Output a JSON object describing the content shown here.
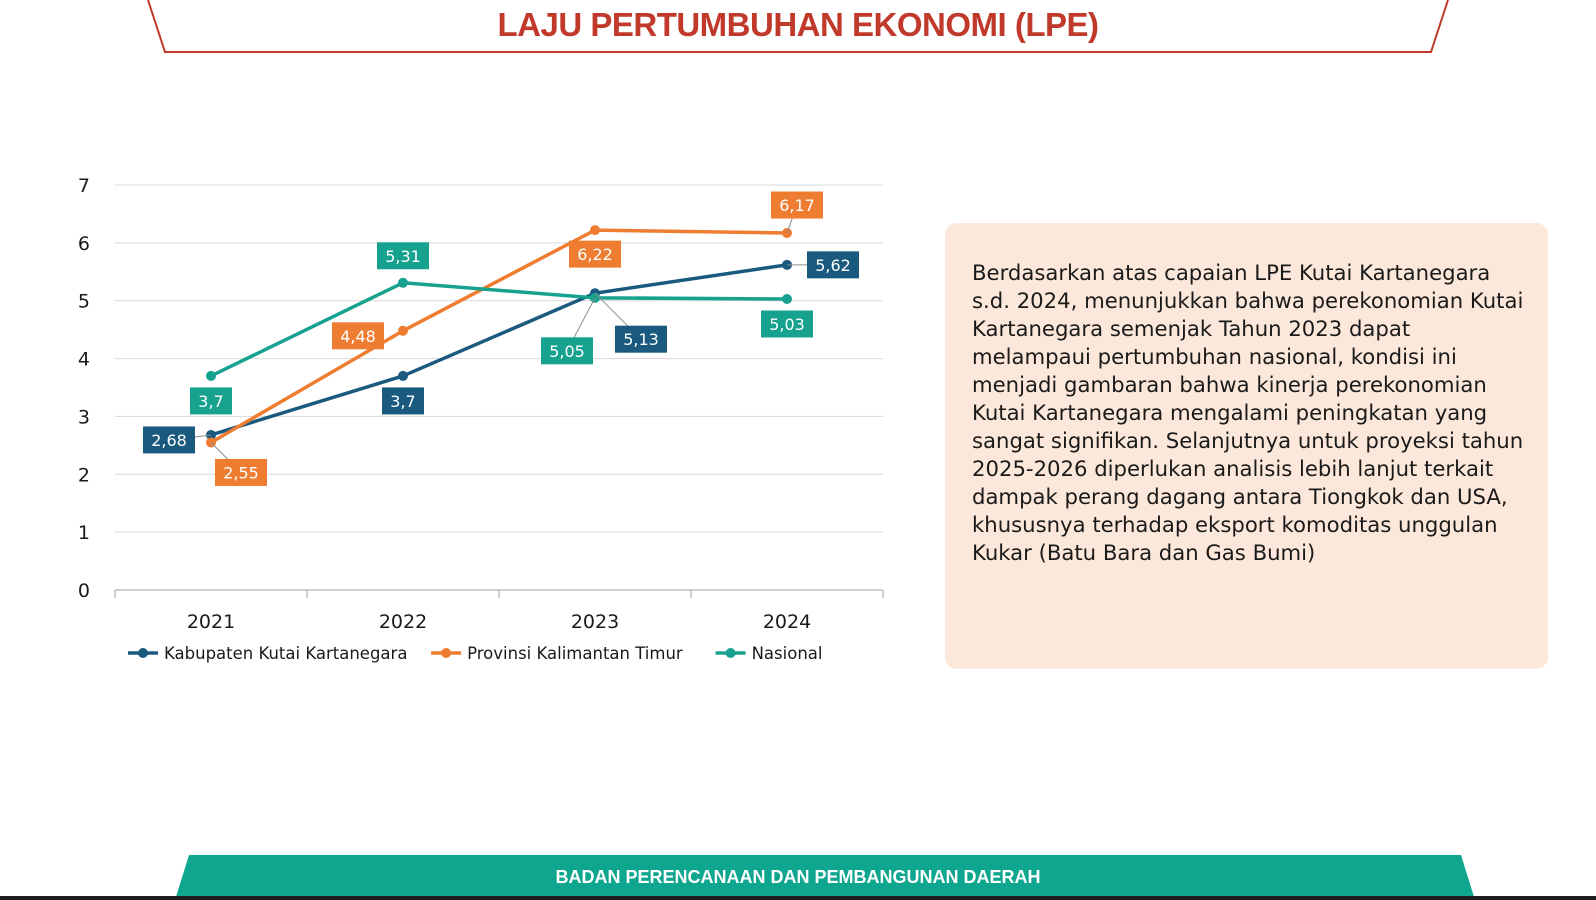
{
  "header": {
    "title": "LAJU PERTUMBUHAN EKONOMI (LPE)"
  },
  "info": {
    "text": "Berdasarkan atas capaian LPE Kutai Kartanegara s.d. 2024, menunjukkan bahwa perekonomian Kutai Kartanegara semenjak Tahun 2023 dapat melampaui pertumbuhan nasional, kondisi ini menjadi gambaran bahwa kinerja perekonomian Kutai Kartanegara mengalami peningkatan yang sangat signifikan. Selanjutnya untuk proyeksi tahun 2025-2026 diperlukan analisis lebih lanjut terkait dampak perang dagang antara Tiongkok dan USA, khususnya terhadap eksport komoditas unggulan Kukar (Batu Bara dan Gas Bumi)"
  },
  "footer": {
    "text": "BADAN PERENCANAAN DAN PEMBANGUNAN DAERAH"
  },
  "colors": {
    "title": "#c0392b",
    "teal_band": "#0ea68f",
    "info_bg": "#fbe8da"
  },
  "chart_data": {
    "type": "line",
    "categories": [
      "2021",
      "2022",
      "2023",
      "2024"
    ],
    "ylim": [
      0,
      7
    ],
    "yticks": [
      0,
      1,
      2,
      3,
      4,
      5,
      6,
      7
    ],
    "grid": true,
    "legend": "bottom",
    "series": [
      {
        "name": "Kabupaten Kutai Kartanegara",
        "color": "#1a5a7e",
        "values": [
          2.68,
          3.7,
          5.13,
          5.62
        ],
        "labels": [
          "2,68",
          "3,7",
          "5,13",
          "5,62"
        ]
      },
      {
        "name": "Provinsi Kalimantan Timur",
        "color": "#ee7d31",
        "values": [
          2.55,
          4.48,
          6.22,
          6.17
        ],
        "labels": [
          "2,55",
          "4,48",
          "6,22",
          "6,17"
        ]
      },
      {
        "name": "Nasional",
        "color": "#17a290",
        "values": [
          3.7,
          5.31,
          5.05,
          5.03
        ],
        "labels": [
          "3,7",
          "5,31",
          "5,05",
          "5,03"
        ]
      }
    ]
  }
}
